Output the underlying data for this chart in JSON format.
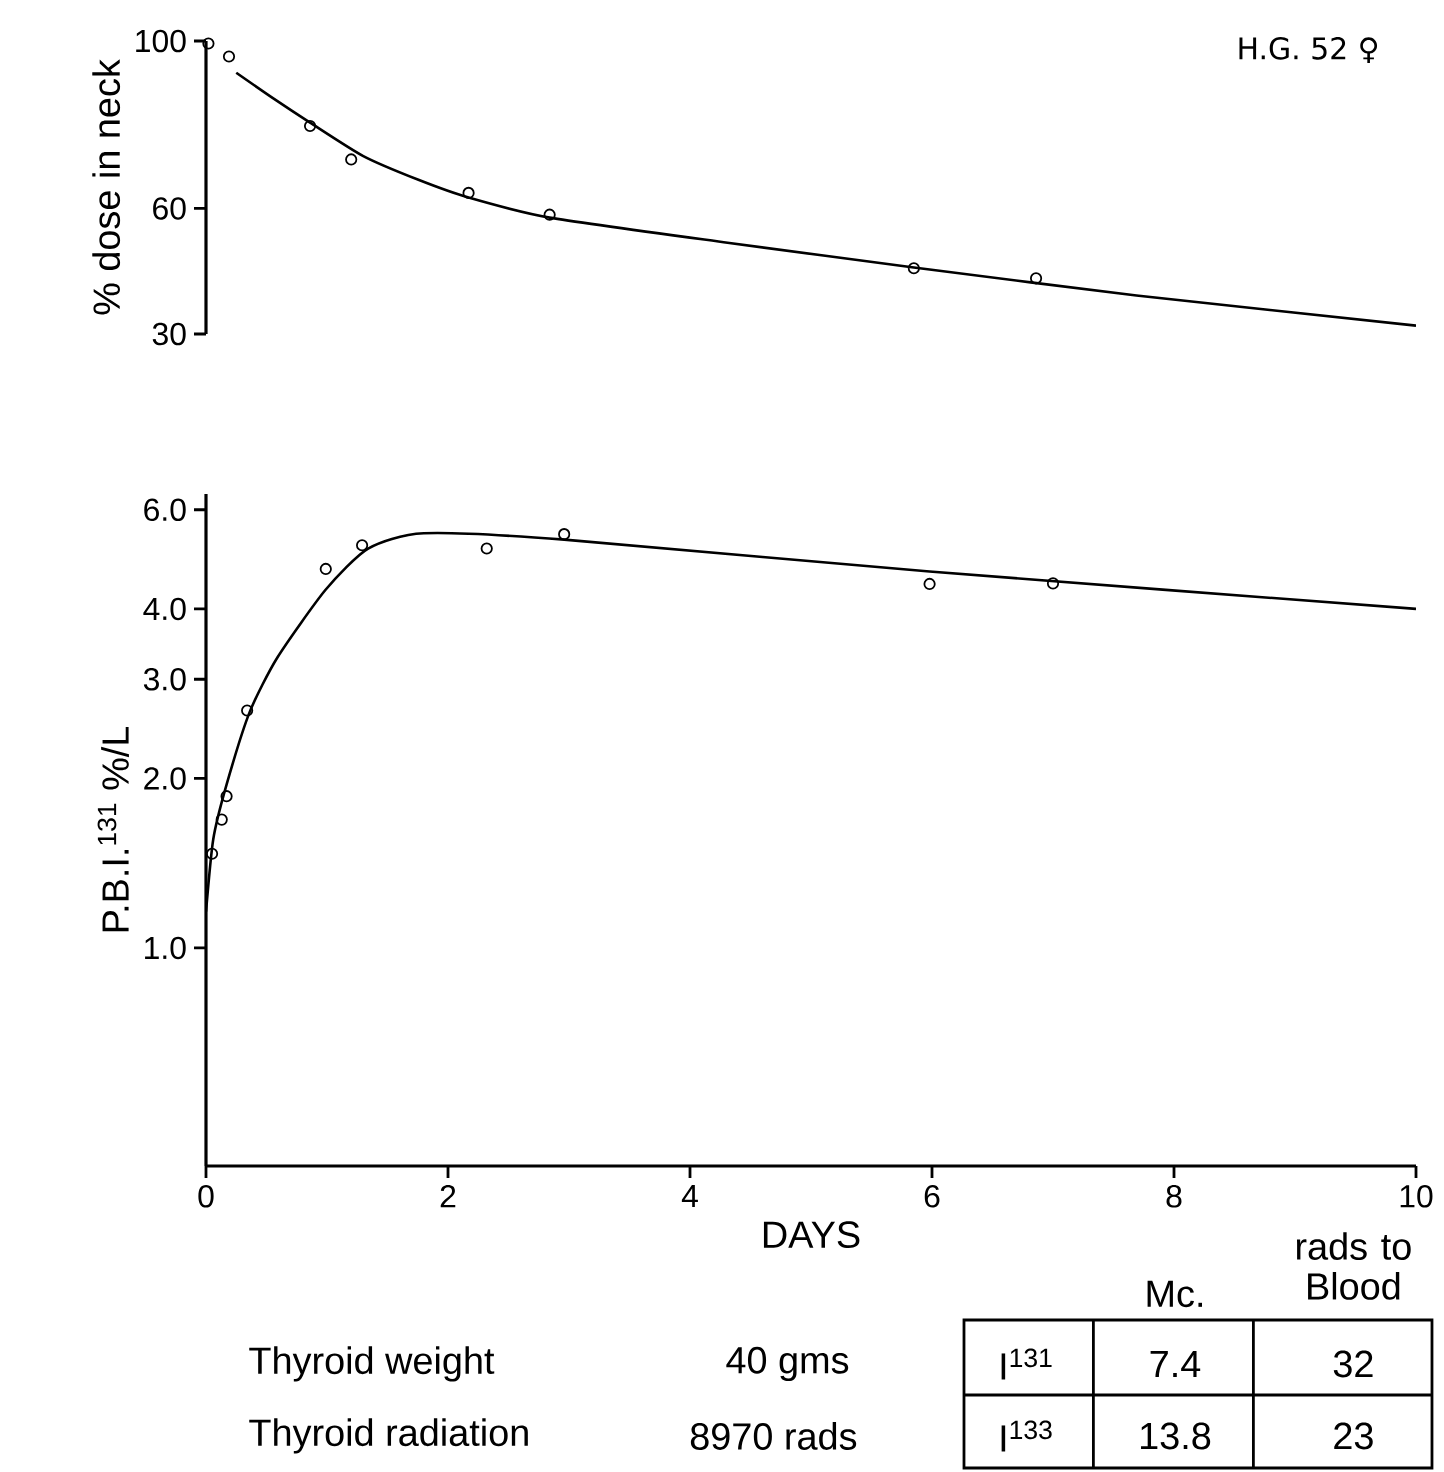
{
  "chart_data": [
    {
      "type": "line",
      "ylabel": "% dose in neck",
      "annotations": [
        "H.G. 52 ♀"
      ],
      "xlim": [
        0,
        10
      ],
      "ylim": [
        30,
        100
      ],
      "yticks": [
        30,
        60,
        100
      ],
      "tick_labels": "y",
      "series": [
        {
          "type": "scatter",
          "marker": "circle",
          "color": "#000000",
          "x": [
            0.02,
            0.19,
            0.86,
            1.2,
            2.17,
            2.84,
            5.85,
            6.86
          ],
          "values": [
            99.4,
            96.3,
            79.7,
            71.7,
            63.7,
            58.5,
            45.7,
            43.3
          ]
        },
        {
          "color": "#000000",
          "x": [
            0.25,
            0.55,
            0.86,
            1.3,
            1.75,
            2.17,
            2.84,
            4.31,
            5.85,
            7.69,
            10
          ],
          "values": [
            92.4,
            86.4,
            80.5,
            72.5,
            66.9,
            62.6,
            57.8,
            51.8,
            45.9,
            39.2,
            32
          ]
        }
      ]
    },
    {
      "type": "line",
      "xlabel": "DAYS",
      "ylabel": "P.B.I.$^{131}$ %/L",
      "log": "y",
      "xlim": [
        0,
        10
      ],
      "ylim": [
        0.41,
        6.4
      ],
      "xticks": [
        0,
        2,
        4,
        6,
        8,
        10
      ],
      "yticks": [
        {
          "value": 1,
          "label": "1.0"
        },
        {
          "value": 2,
          "label": "2.0"
        },
        {
          "value": 3,
          "label": "3.0"
        },
        {
          "value": 4,
          "label": "4.0"
        },
        {
          "value": 6,
          "label": "6.0"
        }
      ],
      "annotations": [
        "Mc.",
        "rads to Blood",
        "Thyroid weight",
        "40 gms",
        "I$^{131}$",
        "7.4",
        "32",
        "Thyroid radiation",
        "8970 rads",
        "I$^{133}$",
        "13.8",
        "23"
      ],
      "series": [
        {
          "type": "scatter",
          "marker": "circle",
          "color": "#000000",
          "x": [
            0.05,
            0.13,
            0.17,
            0.34,
            0.99,
            1.29,
            2.32,
            2.96,
            5.98,
            7.0
          ],
          "values": [
            1.47,
            1.69,
            1.86,
            2.64,
            4.71,
            5.19,
            5.12,
            5.43,
            4.43,
            4.44
          ]
        },
        {
          "color": "#000000",
          "x": [
            0,
            0.06,
            0.17,
            0.36,
            0.59,
            0.99,
            1.34,
            1.8,
            2.96,
            5.98,
            10
          ],
          "values": [
            1.16,
            1.56,
            1.95,
            2.62,
            3.28,
            4.33,
            5.12,
            5.45,
            5.31,
            4.66,
            4.0
          ]
        }
      ]
    }
  ]
}
